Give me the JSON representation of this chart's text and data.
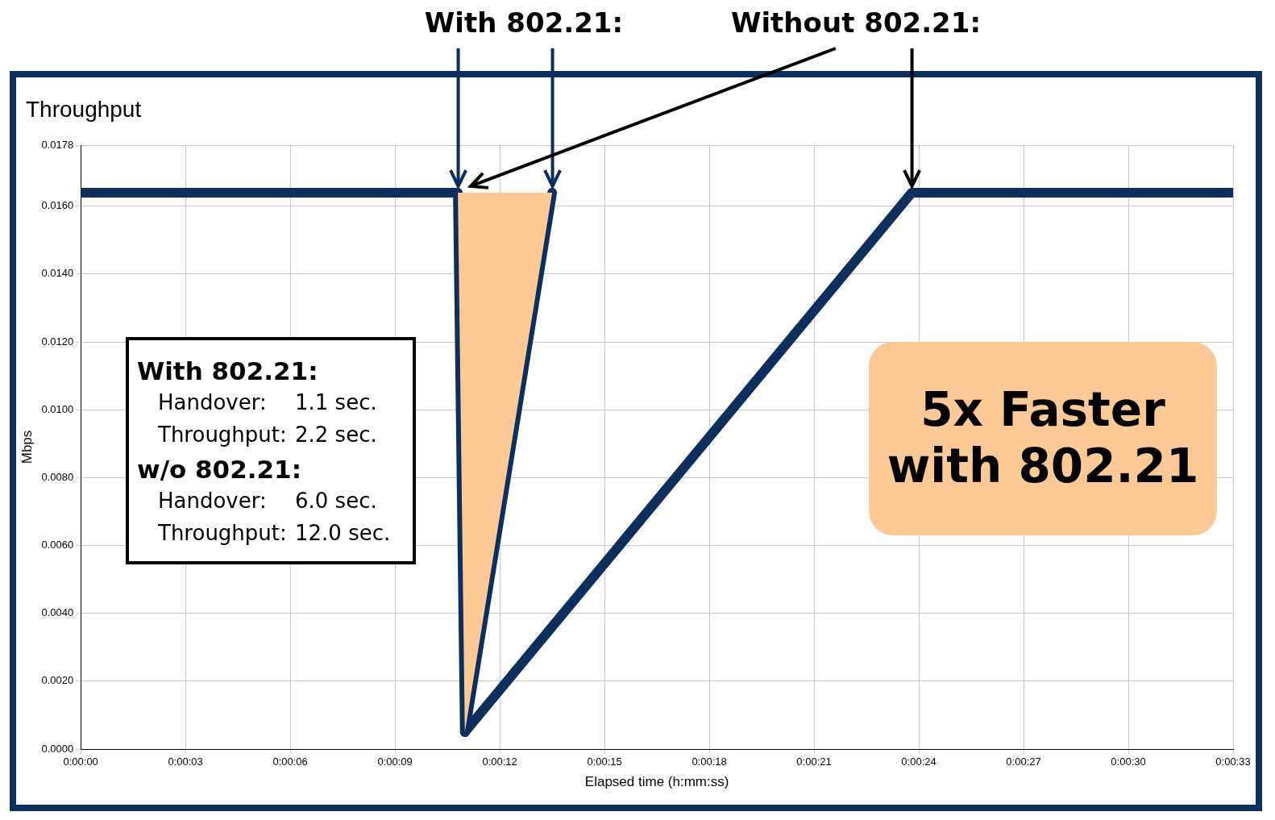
{
  "chart_data": {
    "type": "line",
    "title": "Throughput",
    "xlabel": "Elapsed time (h:mm:ss)",
    "ylabel": "Mbps",
    "xlim": [
      0,
      33
    ],
    "xticks": [
      {
        "value": 0,
        "label": "0:00:00"
      },
      {
        "value": 3,
        "label": "0:00:03"
      },
      {
        "value": 6,
        "label": "0:00:06"
      },
      {
        "value": 9,
        "label": "0:00:09"
      },
      {
        "value": 12,
        "label": "0:00:12"
      },
      {
        "value": 15,
        "label": "0:00:15"
      },
      {
        "value": 18,
        "label": "0:00:18"
      },
      {
        "value": 21,
        "label": "0:00:21"
      },
      {
        "value": 24,
        "label": "0:00:24"
      },
      {
        "value": 27,
        "label": "0:00:27"
      },
      {
        "value": 30,
        "label": "0:00:30"
      },
      {
        "value": 33,
        "label": "0:00:33"
      }
    ],
    "ylim": [
      0,
      0.0178
    ],
    "yticks": [
      {
        "value": 0,
        "label": "0.0000"
      },
      {
        "value": 0.002,
        "label": "0.0020"
      },
      {
        "value": 0.004,
        "label": "0.0040"
      },
      {
        "value": 0.006,
        "label": "0.0060"
      },
      {
        "value": 0.008,
        "label": "0.0080"
      },
      {
        "value": 0.01,
        "label": "0.0100"
      },
      {
        "value": 0.012,
        "label": "0.0120"
      },
      {
        "value": 0.014,
        "label": "0.0140"
      },
      {
        "value": 0.016,
        "label": "0.0160"
      },
      {
        "value": 0.0178,
        "label": "0.0178"
      }
    ],
    "grid": true,
    "marker": "none",
    "line_style": "solid",
    "series": [
      {
        "type": "area",
        "color": "#fdca96",
        "x": [
          10.8,
          11.0,
          13.5,
          10.8
        ],
        "values": [
          0.0164,
          0.0005,
          0.0164,
          0.0164
        ]
      },
      {
        "color": "#0d2f5e",
        "x": [
          0,
          10.8,
          11.0,
          13.5
        ],
        "values": [
          0.0164,
          0.0164,
          0.0005,
          0.0164
        ]
      },
      {
        "color": "#0d2f5e",
        "x": [
          11.0,
          23.8,
          33
        ],
        "values": [
          0.0005,
          0.0164,
          0.0164
        ]
      }
    ],
    "annotations": [
      "With 802.21:",
      "Without 802.21:",
      "With 802.21:",
      "Handover:",
      "1.1 sec.",
      "Throughput:",
      "2.2 sec.",
      "w/o 802.21:",
      "Handover:",
      "6.0 sec.",
      "Throughput:",
      "12.0 sec.",
      "5x Faster with 802.21"
    ]
  }
}
